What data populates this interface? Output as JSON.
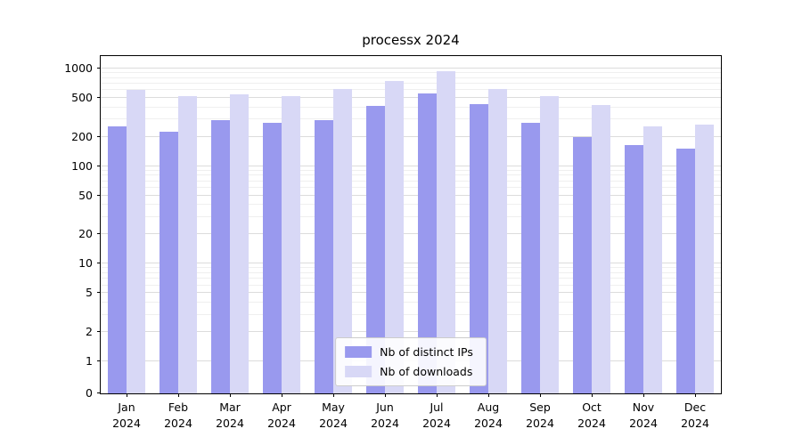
{
  "chart_data": {
    "type": "bar",
    "title": "processx 2024",
    "categories": [
      "Jan",
      "Feb",
      "Mar",
      "Apr",
      "May",
      "Jun",
      "Jul",
      "Aug",
      "Sep",
      "Oct",
      "Nov",
      "Dec"
    ],
    "category_year": "2024",
    "series": [
      {
        "name": "Nb of distinct IPs",
        "color": "#9999ee",
        "values": [
          255,
          225,
          295,
          280,
          295,
          415,
          560,
          430,
          280,
          200,
          165,
          150
        ]
      },
      {
        "name": "Nb of downloads",
        "color": "#d8d8f6",
        "values": [
          600,
          520,
          545,
          520,
          620,
          750,
          930,
          620,
          520,
          420,
          255,
          265
        ]
      }
    ],
    "y_ticks": [
      0,
      1,
      2,
      5,
      10,
      20,
      50,
      100,
      200,
      500,
      1000
    ],
    "y_scale": "symlog",
    "ylim": [
      0,
      1200
    ],
    "grid": "horizontal",
    "legend_position": "lower center",
    "colors": {
      "background": "#ffffff",
      "grid_major": "#dcdcdc",
      "grid_minor": "#efefef",
      "axis": "#000000"
    }
  }
}
